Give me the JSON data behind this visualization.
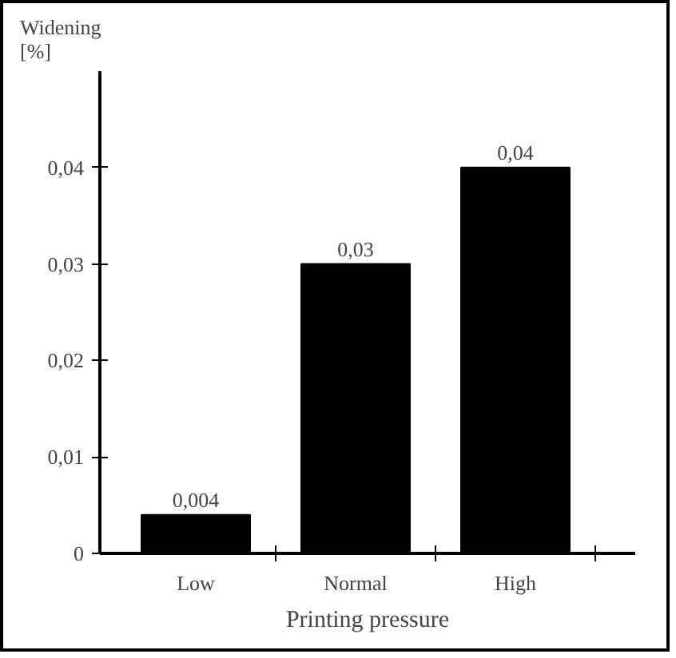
{
  "chart_data": {
    "type": "bar",
    "xlabel": "Printing pressure",
    "ylabel": "Widening [%]",
    "categories": [
      "Low",
      "Normal",
      "High"
    ],
    "values": [
      0.004,
      0.03,
      0.04
    ],
    "value_labels": [
      "0,004",
      "0,03",
      "0,04"
    ],
    "color": "#000000",
    "ylim": [
      0,
      0.05
    ],
    "yticks": [
      {
        "value": 0,
        "label": "0"
      },
      {
        "value": 0.01,
        "label": "0,01"
      },
      {
        "value": 0.02,
        "label": "0,02"
      },
      {
        "value": 0.03,
        "label": "0,03"
      },
      {
        "value": 0.04,
        "label": "0,04"
      }
    ],
    "grid": false
  }
}
